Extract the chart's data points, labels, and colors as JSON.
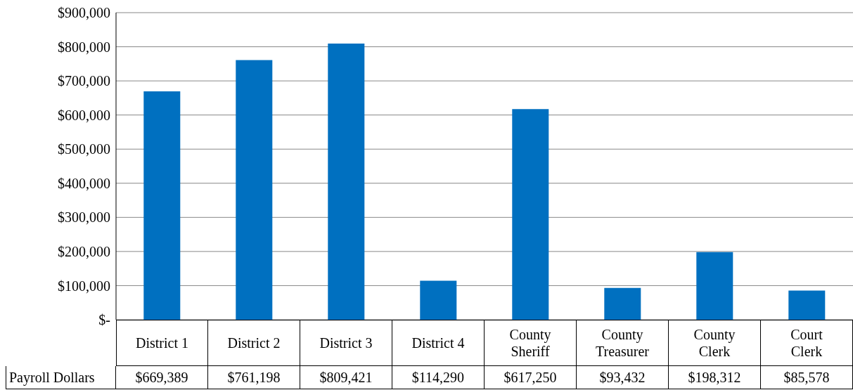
{
  "chart_data": {
    "type": "bar",
    "categories": [
      "District 1",
      "District 2",
      "District 3",
      "District 4",
      "County Sheriff",
      "County Treasurer",
      "County Clerk",
      "Court Clerk"
    ],
    "series": [
      {
        "name": "Payroll Dollars",
        "color": "#0070c0",
        "values": [
          669389,
          761198,
          809421,
          114290,
          617250,
          93432,
          198312,
          85578
        ],
        "value_labels": [
          "$669,389",
          "$761,198",
          "$809,421",
          "$114,290",
          "$617,250",
          "$93,432",
          "$198,312",
          "$85,578"
        ]
      }
    ],
    "ylim": [
      0,
      900000
    ],
    "yticks": [
      {
        "value": 0,
        "label": "$-"
      },
      {
        "value": 100000,
        "label": "$100,000"
      },
      {
        "value": 200000,
        "label": "$200,000"
      },
      {
        "value": 300000,
        "label": "$300,000"
      },
      {
        "value": 400000,
        "label": "$400,000"
      },
      {
        "value": 500000,
        "label": "$500,000"
      },
      {
        "value": 600000,
        "label": "$600,000"
      },
      {
        "value": 700000,
        "label": "$700,000"
      },
      {
        "value": 800000,
        "label": "$800,000"
      },
      {
        "value": 900000,
        "label": "$900,000"
      }
    ],
    "grid": "y"
  }
}
